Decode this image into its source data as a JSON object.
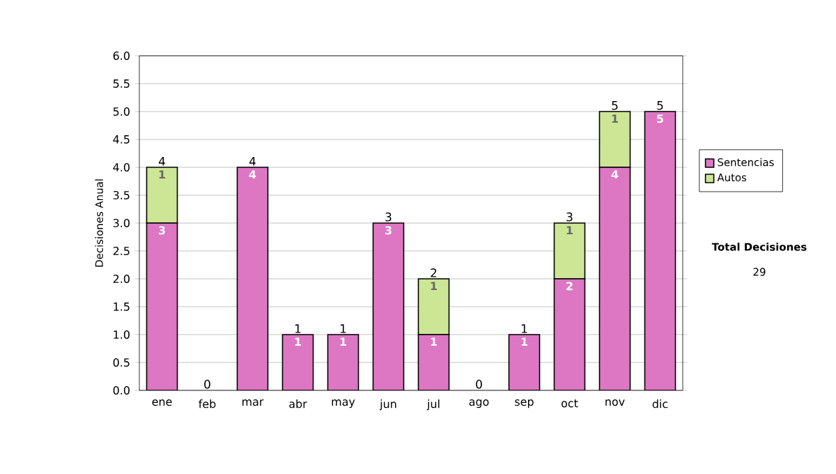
{
  "chart_data": {
    "type": "bar",
    "stacked": true,
    "ylabel": "Decisiones Anual",
    "categories": [
      "ene",
      "feb",
      "mar",
      "abr",
      "may",
      "jun",
      "jul",
      "ago",
      "sep",
      "oct",
      "nov",
      "dic"
    ],
    "series": [
      {
        "name": "Sentencias",
        "color": "#dd77c4",
        "values": [
          3,
          0,
          4,
          1,
          1,
          3,
          1,
          0,
          1,
          2,
          4,
          5
        ],
        "value_labels": [
          "3",
          null,
          "4",
          "1",
          "1",
          "3",
          "1",
          null,
          "1",
          "2",
          "4",
          "5"
        ]
      },
      {
        "name": "Autos",
        "color": "#cce696",
        "values": [
          1,
          0,
          0,
          0,
          0,
          0,
          1,
          0,
          0,
          1,
          1,
          0
        ],
        "value_labels": [
          "1",
          null,
          null,
          null,
          null,
          null,
          "1",
          null,
          null,
          "1",
          "1",
          null
        ]
      }
    ],
    "totals": [
      "4",
      "0",
      "4",
      "1",
      "1",
      "3",
      "2",
      "0",
      "1",
      "3",
      "5",
      "5"
    ],
    "ylim": [
      0,
      6
    ],
    "yticks": [
      {
        "value": 0,
        "label": "0.0"
      },
      {
        "value": 0.5,
        "label": "0.5"
      },
      {
        "value": 1,
        "label": "1.0"
      },
      {
        "value": 1.5,
        "label": "1.5"
      },
      {
        "value": 2,
        "label": "2.0"
      },
      {
        "value": 2.5,
        "label": "2.5"
      },
      {
        "value": 3,
        "label": "3.0"
      },
      {
        "value": 3.5,
        "label": "3.5"
      },
      {
        "value": 4,
        "label": "4.0"
      },
      {
        "value": 4.5,
        "label": "4.5"
      },
      {
        "value": 5,
        "label": "5.0"
      },
      {
        "value": 5.5,
        "label": "5.5"
      },
      {
        "value": 6,
        "label": "6.0"
      }
    ],
    "grid": "y",
    "legend": "right",
    "annotations": [
      "Total Decisiones",
      "29"
    ]
  }
}
